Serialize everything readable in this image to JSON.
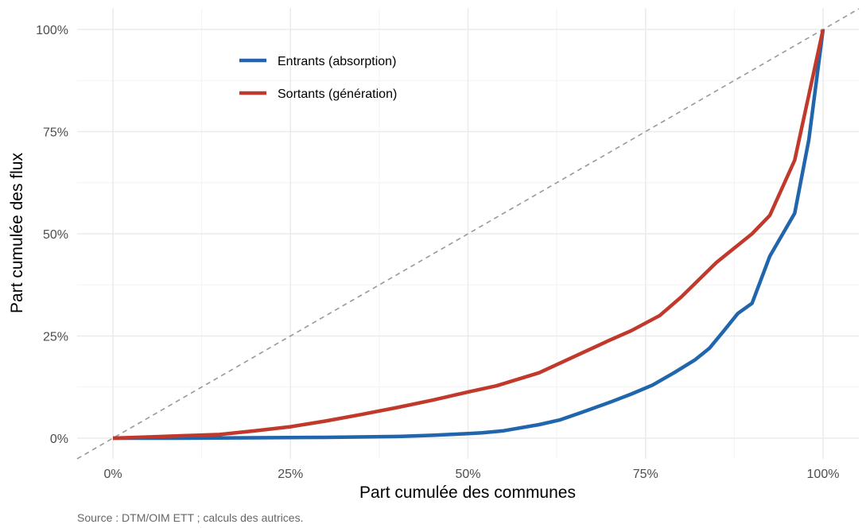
{
  "chart_data": {
    "type": "line",
    "title": "",
    "xlabel": "Part cumulée des communes",
    "ylabel": "Part cumulée des flux",
    "caption": "Source : DTM/OIM ETT ; calculs des autrices.",
    "xlim": [
      0,
      1
    ],
    "ylim": [
      0,
      1
    ],
    "x_ticks": [
      {
        "value": 0,
        "label": "0%"
      },
      {
        "value": 0.25,
        "label": "25%"
      },
      {
        "value": 0.5,
        "label": "50%"
      },
      {
        "value": 0.75,
        "label": "75%"
      },
      {
        "value": 1,
        "label": "100%"
      }
    ],
    "y_ticks": [
      {
        "value": 0,
        "label": "0%"
      },
      {
        "value": 0.25,
        "label": "25%"
      },
      {
        "value": 0.5,
        "label": "50%"
      },
      {
        "value": 0.75,
        "label": "75%"
      },
      {
        "value": 1,
        "label": "100%"
      }
    ],
    "grid": true,
    "legend_position": "top-left",
    "reference_line": {
      "from": [
        0,
        0
      ],
      "to": [
        1,
        1
      ],
      "style": "dashed",
      "color": "#999999"
    },
    "series": [
      {
        "name": "Entrants (absorption)",
        "color": "#2166ac",
        "points": [
          [
            0,
            0
          ],
          [
            0.1,
            0
          ],
          [
            0.2,
            0.001
          ],
          [
            0.3,
            0.002
          ],
          [
            0.4,
            0.004
          ],
          [
            0.45,
            0.007
          ],
          [
            0.5,
            0.011
          ],
          [
            0.52,
            0.013
          ],
          [
            0.55,
            0.018
          ],
          [
            0.6,
            0.033
          ],
          [
            0.63,
            0.045
          ],
          [
            0.66,
            0.063
          ],
          [
            0.7,
            0.088
          ],
          [
            0.73,
            0.108
          ],
          [
            0.76,
            0.13
          ],
          [
            0.79,
            0.16
          ],
          [
            0.82,
            0.192
          ],
          [
            0.84,
            0.22
          ],
          [
            0.86,
            0.262
          ],
          [
            0.88,
            0.305
          ],
          [
            0.9,
            0.33
          ],
          [
            0.925,
            0.445
          ],
          [
            0.96,
            0.55
          ],
          [
            0.98,
            0.73
          ],
          [
            1,
            1
          ]
        ]
      },
      {
        "name": "Sortants (génération)",
        "color": "#c0392b",
        "points": [
          [
            0,
            0
          ],
          [
            0.05,
            0.003
          ],
          [
            0.1,
            0.006
          ],
          [
            0.15,
            0.009
          ],
          [
            0.2,
            0.018
          ],
          [
            0.25,
            0.028
          ],
          [
            0.3,
            0.042
          ],
          [
            0.35,
            0.058
          ],
          [
            0.4,
            0.075
          ],
          [
            0.45,
            0.093
          ],
          [
            0.5,
            0.113
          ],
          [
            0.54,
            0.128
          ],
          [
            0.6,
            0.16
          ],
          [
            0.65,
            0.2
          ],
          [
            0.7,
            0.24
          ],
          [
            0.73,
            0.263
          ],
          [
            0.77,
            0.3
          ],
          [
            0.8,
            0.345
          ],
          [
            0.85,
            0.43
          ],
          [
            0.9,
            0.5
          ],
          [
            0.925,
            0.545
          ],
          [
            0.96,
            0.68
          ],
          [
            1,
            1
          ]
        ]
      }
    ]
  }
}
